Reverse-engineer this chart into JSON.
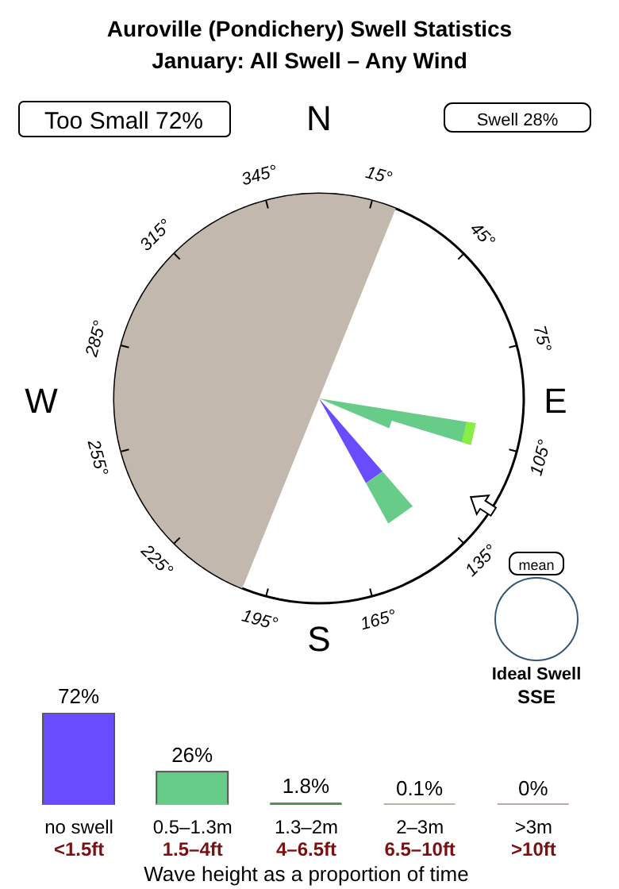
{
  "chart_data": [
    {
      "type": "other",
      "title": "Auroville (Pondichery) Swell Statistics",
      "subtitle": "January: All Swell – Any Wind",
      "annotations": [
        "Too Small 72%",
        "Swell 28%",
        "N",
        "E",
        "S",
        "W",
        "15°",
        "45°",
        "75°",
        "105°",
        "135°",
        "165°",
        "195°",
        "225°",
        "255°",
        "285°",
        "315°",
        "345°",
        "mean",
        "Ideal Swell",
        "SSE"
      ]
    },
    {
      "type": "bar",
      "categories": [
        "no swell\n<1.5ft",
        "0.5–1.3m\n1.5–4ft",
        "1.3–2m\n4–6.5ft",
        "2–3m\n6.5–10ft",
        ">3m\n>10ft"
      ],
      "values": [
        72,
        26,
        1.8,
        0.1,
        0
      ],
      "colors": [
        "#6a4cff",
        "#66cc88",
        "#4f8f4f",
        "#b4b8a4",
        "#c0a8a8"
      ],
      "value_labels": [
        "72%",
        "26%",
        "1.8%",
        "0.1%",
        "0%"
      ],
      "xlabel": "Wave height as a proportion of time"
    }
  ]
}
